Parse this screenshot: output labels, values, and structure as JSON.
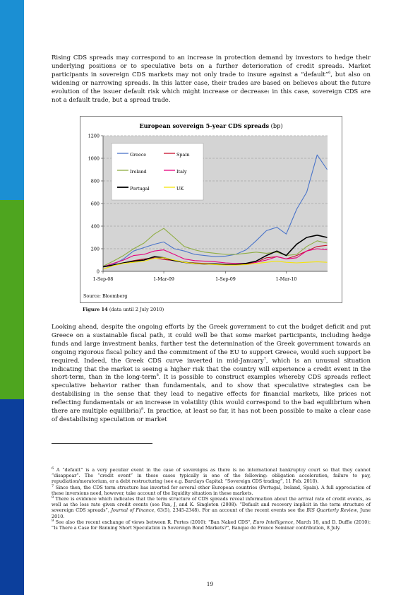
{
  "paragraph1": "Rising CDS spreads may correspond to an increase in protection demand by investors to hedge their underlying positions or to speculative bets on a further deterioration of credit spreads. Market participants in sovereign CDS markets may not only trade to insure against a “default”",
  "paragraph1_ref": "6",
  "paragraph1_rest": ", but also on widening or narrowing spreads. In this latter case, their trades are based on believes about the future evolution of the issuer default risk which might increase or decrease: in this case, sovereign CDS are not a default trade, but a spread trade.",
  "chart_data": {
    "type": "line",
    "title": "European sovereign 5-year CDS spreads",
    "title_unit": "(bp)",
    "source": "Source: Bloomberg",
    "x_range": [
      "2008-09-01",
      "2010-07-02"
    ],
    "x_ticks": [
      {
        "date": "2008-09-01",
        "label": "1-Sep-08"
      },
      {
        "date": "2009-03-01",
        "label": "1-Mar-09"
      },
      {
        "date": "2009-09-01",
        "label": "1-Sep-09"
      },
      {
        "date": "2010-03-01",
        "label": "1-Mar-10"
      }
    ],
    "ylim": [
      0,
      1200
    ],
    "y_ticks": [
      0,
      200,
      400,
      600,
      800,
      1000,
      1200
    ],
    "grid": true,
    "legend_position": "top-left",
    "series": [
      {
        "name": "Greece",
        "color": "#4a74c9",
        "points": [
          [
            "2008-09-01",
            45
          ],
          [
            "2008-10-01",
            60
          ],
          [
            "2008-11-01",
            110
          ],
          [
            "2008-12-01",
            180
          ],
          [
            "2009-01-01",
            210
          ],
          [
            "2009-02-01",
            240
          ],
          [
            "2009-03-01",
            260
          ],
          [
            "2009-04-01",
            200
          ],
          [
            "2009-05-01",
            180
          ],
          [
            "2009-06-01",
            150
          ],
          [
            "2009-07-01",
            140
          ],
          [
            "2009-08-01",
            130
          ],
          [
            "2009-09-01",
            135
          ],
          [
            "2009-10-01",
            150
          ],
          [
            "2009-11-01",
            190
          ],
          [
            "2009-12-01",
            270
          ],
          [
            "2010-01-01",
            360
          ],
          [
            "2010-02-01",
            390
          ],
          [
            "2010-03-01",
            330
          ],
          [
            "2010-04-01",
            550
          ],
          [
            "2010-05-01",
            700
          ],
          [
            "2010-06-01",
            1030
          ],
          [
            "2010-07-01",
            900
          ]
        ]
      },
      {
        "name": "Spain",
        "color": "#c8102e",
        "points": [
          [
            "2008-09-01",
            40
          ],
          [
            "2008-10-01",
            55
          ],
          [
            "2008-11-01",
            75
          ],
          [
            "2008-12-01",
            95
          ],
          [
            "2009-01-01",
            110
          ],
          [
            "2009-02-01",
            120
          ],
          [
            "2009-03-01",
            105
          ],
          [
            "2009-04-01",
            95
          ],
          [
            "2009-05-01",
            80
          ],
          [
            "2009-06-01",
            75
          ],
          [
            "2009-07-01",
            70
          ],
          [
            "2009-08-01",
            65
          ],
          [
            "2009-09-01",
            60
          ],
          [
            "2009-10-01",
            60
          ],
          [
            "2009-11-01",
            65
          ],
          [
            "2009-12-01",
            80
          ],
          [
            "2010-01-01",
            120
          ],
          [
            "2010-02-01",
            130
          ],
          [
            "2010-03-01",
            110
          ],
          [
            "2010-04-01",
            140
          ],
          [
            "2010-05-01",
            180
          ],
          [
            "2010-06-01",
            220
          ],
          [
            "2010-07-01",
            230
          ]
        ]
      },
      {
        "name": "Ireland",
        "color": "#8fad42",
        "points": [
          [
            "2008-09-01",
            45
          ],
          [
            "2008-10-01",
            90
          ],
          [
            "2008-11-01",
            140
          ],
          [
            "2008-12-01",
            200
          ],
          [
            "2009-01-01",
            250
          ],
          [
            "2009-02-01",
            330
          ],
          [
            "2009-03-01",
            380
          ],
          [
            "2009-04-01",
            300
          ],
          [
            "2009-05-01",
            220
          ],
          [
            "2009-06-01",
            190
          ],
          [
            "2009-07-01",
            170
          ],
          [
            "2009-08-01",
            160
          ],
          [
            "2009-09-01",
            150
          ],
          [
            "2009-10-01",
            150
          ],
          [
            "2009-11-01",
            160
          ],
          [
            "2009-12-01",
            170
          ],
          [
            "2010-01-01",
            160
          ],
          [
            "2010-02-01",
            170
          ],
          [
            "2010-03-01",
            140
          ],
          [
            "2010-04-01",
            150
          ],
          [
            "2010-05-01",
            220
          ],
          [
            "2010-06-01",
            270
          ],
          [
            "2010-07-01",
            250
          ]
        ]
      },
      {
        "name": "Italy",
        "color": "#e6007e",
        "points": [
          [
            "2008-09-01",
            40
          ],
          [
            "2008-10-01",
            70
          ],
          [
            "2008-11-01",
            100
          ],
          [
            "2008-12-01",
            140
          ],
          [
            "2009-01-01",
            150
          ],
          [
            "2009-02-01",
            180
          ],
          [
            "2009-03-01",
            190
          ],
          [
            "2009-04-01",
            150
          ],
          [
            "2009-05-01",
            110
          ],
          [
            "2009-06-01",
            95
          ],
          [
            "2009-07-01",
            90
          ],
          [
            "2009-08-01",
            85
          ],
          [
            "2009-09-01",
            75
          ],
          [
            "2009-10-01",
            70
          ],
          [
            "2009-11-01",
            70
          ],
          [
            "2009-12-01",
            80
          ],
          [
            "2010-01-01",
            100
          ],
          [
            "2010-02-01",
            130
          ],
          [
            "2010-03-01",
            110
          ],
          [
            "2010-04-01",
            120
          ],
          [
            "2010-05-01",
            180
          ],
          [
            "2010-06-01",
            200
          ],
          [
            "2010-07-01",
            190
          ]
        ]
      },
      {
        "name": "Portugal",
        "color": "#000000",
        "points": [
          [
            "2008-09-01",
            40
          ],
          [
            "2008-10-01",
            55
          ],
          [
            "2008-11-01",
            75
          ],
          [
            "2008-12-01",
            90
          ],
          [
            "2009-01-01",
            100
          ],
          [
            "2009-02-01",
            130
          ],
          [
            "2009-03-01",
            120
          ],
          [
            "2009-04-01",
            95
          ],
          [
            "2009-05-01",
            80
          ],
          [
            "2009-06-01",
            70
          ],
          [
            "2009-07-01",
            65
          ],
          [
            "2009-08-01",
            65
          ],
          [
            "2009-09-01",
            60
          ],
          [
            "2009-10-01",
            60
          ],
          [
            "2009-11-01",
            70
          ],
          [
            "2009-12-01",
            90
          ],
          [
            "2010-01-01",
            140
          ],
          [
            "2010-02-01",
            180
          ],
          [
            "2010-03-01",
            140
          ],
          [
            "2010-04-01",
            240
          ],
          [
            "2010-05-01",
            300
          ],
          [
            "2010-06-01",
            320
          ],
          [
            "2010-07-01",
            300
          ]
        ]
      },
      {
        "name": "UK",
        "color": "#f4e40a",
        "points": [
          [
            "2008-09-01",
            20
          ],
          [
            "2008-10-01",
            50
          ],
          [
            "2008-11-01",
            70
          ],
          [
            "2008-12-01",
            80
          ],
          [
            "2009-01-01",
            90
          ],
          [
            "2009-02-01",
            115
          ],
          [
            "2009-03-01",
            120
          ],
          [
            "2009-04-01",
            100
          ],
          [
            "2009-05-01",
            80
          ],
          [
            "2009-06-01",
            70
          ],
          [
            "2009-07-01",
            65
          ],
          [
            "2009-08-01",
            60
          ],
          [
            "2009-09-01",
            55
          ],
          [
            "2009-10-01",
            55
          ],
          [
            "2009-11-01",
            60
          ],
          [
            "2009-12-01",
            70
          ],
          [
            "2010-01-01",
            80
          ],
          [
            "2010-02-01",
            90
          ],
          [
            "2010-03-01",
            80
          ],
          [
            "2010-04-01",
            75
          ],
          [
            "2010-05-01",
            80
          ],
          [
            "2010-06-01",
            85
          ],
          [
            "2010-07-01",
            80
          ]
        ]
      }
    ]
  },
  "caption_label": "Figure 14",
  "caption_text": "(data until 2 July 2010)",
  "paragraph2_a": "Looking ahead, despite the ongoing efforts by the Greek government to cut the budget deficit and put Greece on a sustainable fiscal path, it could well be that some market participants, including hedge funds and large investment banks, further test the determination of the Greek government towards an ongoing rigorous fiscal policy and the commitment of the EU to support Greece, would such support be required. Indeed, the Greek CDS curve inverted in mid-January",
  "paragraph2_ref1": "7",
  "paragraph2_b": ", which is an unusual situation indicating that the market is seeing a higher risk that the country will experience a credit event in the short-term, than in the long-term",
  "paragraph2_ref2": "8",
  "paragraph2_c": ". It is possible to construct examples whereby CDS spreads reflect speculative behavior rather than fundamentals, and to show that speculative strategies can be destabilising in the sense that they lead to negative effects for financial markets, like prices not reflecting fundamentals or an increase in volatility (this would correspond to the bad equilibrium when there are multiple equilibria)",
  "paragraph2_ref3": "9",
  "paragraph2_d": ". In practice, at least so far, it has not been possible to make a clear case of destabilising speculation or market",
  "footnotes": [
    {
      "num": "6",
      "text": " A “default” is a very peculiar event in the case of sovereigns as there is no international bankruptcy court so that they cannot “disappear”. The “credit event” in these cases typically is one of the following: obligation acceleration, failure to pay, repudiation/moratorium, or a debt restructuring (see e.g. Barclays Capital: “Sovereign CDS trading”, 11 Feb. 2010)."
    },
    {
      "num": "7",
      "text": " Since then, the CDS term structure has inverted for several other European countries (Portugal, Ireland, Spain). A full appreciation of these inversions need, however, take account of the liquidity situation in these markets."
    },
    {
      "num": "8",
      "text": " There is evidence which indicates that the term structure of CDS spreads reveal information about the arrival rate of credit events, as well as the loss rate given credit events (see Pan, J, and K. Singleton (2008): “Default and recovery implicit in the term structure of sovereign CDS spreads”, ",
      "ital": "Journal of Finance",
      "tail": ", 63(5), 2345-2348). For an account of the recent events see the ",
      "ital2": "BIS Quarterly Review",
      "tail2": ", June 2010."
    },
    {
      "num": "9",
      "text": " See also the recent exchange of views between R. Portes (2010): \"Ban Naked CDS\", ",
      "ital": "Euro Intelligence",
      "tail": ", March 18, and D. Duffie (2010): \"Is There a Case for Banning Short Speculation in Sovereign Bond Markets?\", Banque de France Seminar contribution, 8 July.",
      "ital2": "",
      "tail2": ""
    }
  ],
  "page_number": "19"
}
